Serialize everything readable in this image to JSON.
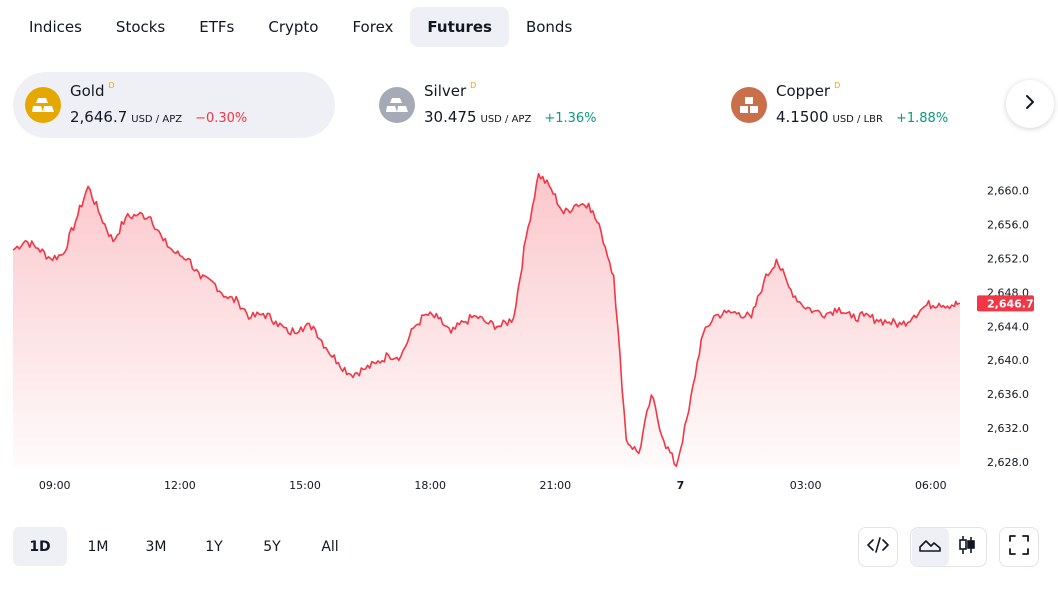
{
  "tabs": [
    {
      "label": "Indices",
      "active": false
    },
    {
      "label": "Stocks",
      "active": false
    },
    {
      "label": "ETFs",
      "active": false
    },
    {
      "label": "Crypto",
      "active": false
    },
    {
      "label": "Forex",
      "active": false
    },
    {
      "label": "Futures",
      "active": true
    },
    {
      "label": "Bonds",
      "active": false
    }
  ],
  "symbols": [
    {
      "name": "Gold",
      "badge": "D",
      "price": "2,646.7",
      "currency": "USD / APZ",
      "change": "−0.30%",
      "direction": "down",
      "logo_color": "#e5a700",
      "icon": "gold-bars-icon"
    },
    {
      "name": "Silver",
      "badge": "D",
      "price": "30.475",
      "currency": "USD / APZ",
      "change": "+1.36%",
      "direction": "up",
      "logo_color": "#a6a9b6",
      "icon": "silver-bars-icon"
    },
    {
      "name": "Copper",
      "badge": "D",
      "price": "4.1500",
      "currency": "USD / LBR",
      "change": "+1.88%",
      "direction": "up",
      "logo_color": "#c96f4a",
      "icon": "copper-blocks-icon"
    }
  ],
  "chart_data": {
    "type": "area",
    "symbol": "Gold",
    "last_price_label": "2,646.7",
    "last_price": 2646.7,
    "line_color": "#f23645",
    "ylim": [
      2627.4,
      2664.8
    ],
    "y_ticks": [
      "2,628.0",
      "2,632.0",
      "2,636.0",
      "2,640.0",
      "2,644.0",
      "2,648.0",
      "2,652.0",
      "2,656.0",
      "2,660.0"
    ],
    "y_tick_values": [
      2628,
      2632,
      2636,
      2640,
      2644,
      2648,
      2652,
      2656,
      2660
    ],
    "x_ticks": [
      "09:00",
      "12:00",
      "15:00",
      "18:00",
      "21:00",
      "7",
      "03:00",
      "06:00"
    ],
    "x_tick_hours": [
      9,
      12,
      15,
      18,
      21,
      24,
      27,
      30
    ],
    "xlim_hours": [
      8.0,
      30.7
    ],
    "x_hours": [
      8.0,
      8.3,
      8.6,
      8.9,
      9.2,
      9.5,
      9.8,
      10.1,
      10.4,
      10.7,
      11.0,
      11.3,
      11.6,
      11.9,
      12.2,
      12.5,
      12.8,
      13.1,
      13.4,
      13.7,
      14.0,
      14.3,
      14.6,
      14.9,
      15.2,
      15.5,
      15.8,
      16.1,
      16.4,
      16.7,
      17.0,
      17.3,
      17.6,
      17.9,
      18.2,
      18.5,
      18.8,
      19.1,
      19.4,
      19.7,
      20.0,
      20.3,
      20.6,
      20.9,
      21.2,
      21.5,
      21.8,
      22.1,
      22.4,
      22.7,
      23.0,
      23.3,
      23.6,
      23.9,
      24.2,
      24.5,
      24.8,
      25.1,
      25.4,
      25.7,
      26.0,
      26.3,
      26.6,
      26.9,
      27.2,
      27.5,
      27.8,
      28.1,
      28.4,
      28.7,
      29.0,
      29.3,
      29.6,
      29.9,
      30.2,
      30.5,
      30.7
    ],
    "y_values": [
      2653.0,
      2654.1,
      2653.2,
      2652.0,
      2652.5,
      2656.4,
      2660.5,
      2657.0,
      2654.0,
      2656.8,
      2657.2,
      2656.9,
      2654.1,
      2652.6,
      2652.0,
      2649.6,
      2649.2,
      2647.5,
      2646.9,
      2645.0,
      2645.5,
      2644.6,
      2643.2,
      2643.9,
      2644.0,
      2641.5,
      2639.7,
      2638.3,
      2638.9,
      2639.6,
      2640.6,
      2640.5,
      2643.8,
      2645.4,
      2644.9,
      2643.2,
      2644.5,
      2645.2,
      2644.3,
      2644.0,
      2645.0,
      2654.5,
      2662.0,
      2660.2,
      2657.3,
      2658.4,
      2658.5,
      2655.1,
      2650.0,
      2630.6,
      2629.0,
      2635.9,
      2630.5,
      2627.5,
      2634.0,
      2642.5,
      2645.2,
      2645.6,
      2645.6,
      2645.0,
      2649.3,
      2651.9,
      2648.6,
      2646.6,
      2645.8,
      2645.5,
      2646.2,
      2645.0,
      2645.2,
      2644.8,
      2644.5,
      2644.2,
      2645.3,
      2646.5,
      2646.7,
      2646.5,
      2646.7
    ]
  },
  "ranges": [
    {
      "label": "1D",
      "active": true
    },
    {
      "label": "1M",
      "active": false
    },
    {
      "label": "3M",
      "active": false
    },
    {
      "label": "1Y",
      "active": false
    },
    {
      "label": "5Y",
      "active": false
    },
    {
      "label": "All",
      "active": false
    }
  ],
  "tools": {
    "embed_icon": "code-icon",
    "area_icon": "area-chart-icon",
    "candle_icon": "candlestick-icon",
    "fullscreen_icon": "fullscreen-icon",
    "next_icon": "chevron-right-icon"
  }
}
